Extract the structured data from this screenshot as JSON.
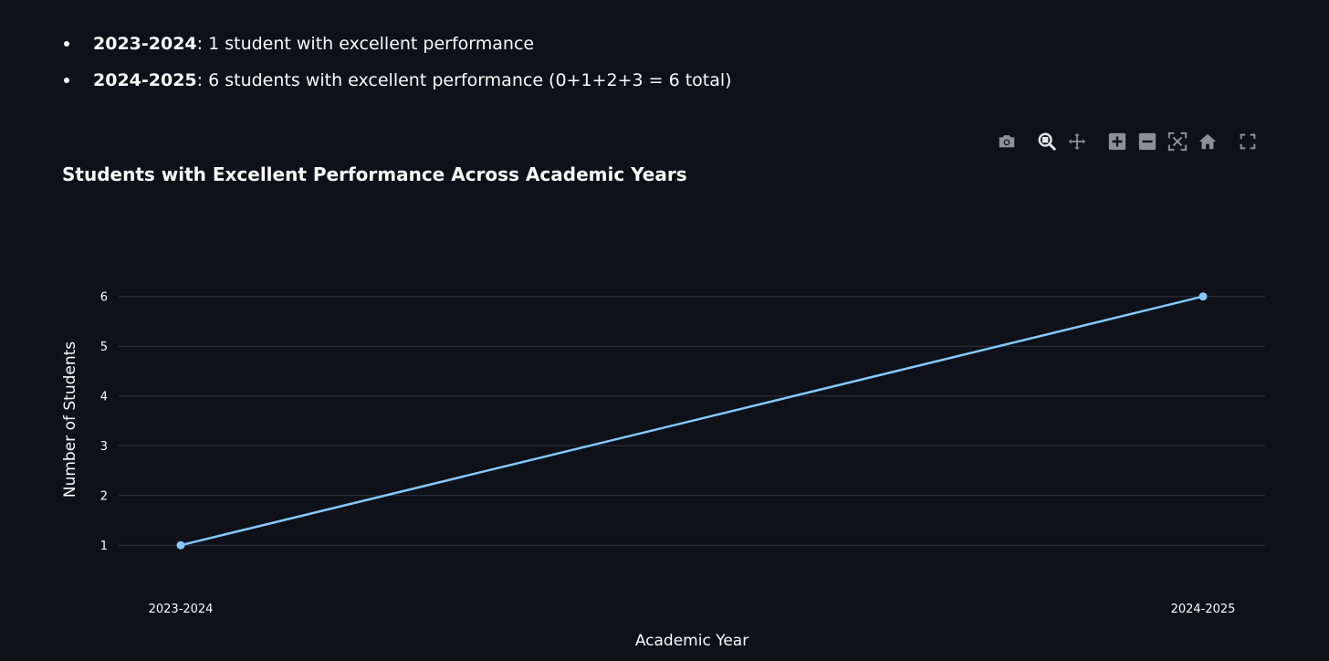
{
  "summary": {
    "bullets": [
      {
        "label": "2023-2024",
        "text": ": 1 student with excellent performance"
      },
      {
        "label": "2024-2025",
        "text": ": 6 students with excellent performance (0+1+2+3 = 6 total)"
      }
    ]
  },
  "modebar": {
    "icons": [
      "camera-icon",
      "zoom-icon",
      "pan-icon",
      "zoom-in-icon",
      "zoom-out-icon",
      "autoscale-icon",
      "reset-axes-icon",
      "fullscreen-icon"
    ]
  },
  "colors": {
    "background": "#0e1117",
    "line": "#83c9ff",
    "grid": "#31333f",
    "text": "#fafafa"
  },
  "chart_data": {
    "type": "line",
    "title": "Students with Excellent Performance Across Academic Years",
    "xlabel": "Academic Year",
    "ylabel": "Number of Students",
    "categories": [
      "2023-2024",
      "2024-2025"
    ],
    "series": [
      {
        "values": [
          1,
          6
        ]
      }
    ],
    "ylim": [
      0.6,
      6.6
    ],
    "yticks": [
      1,
      2,
      3,
      4,
      5,
      6
    ],
    "grid": true,
    "legend": "none"
  }
}
